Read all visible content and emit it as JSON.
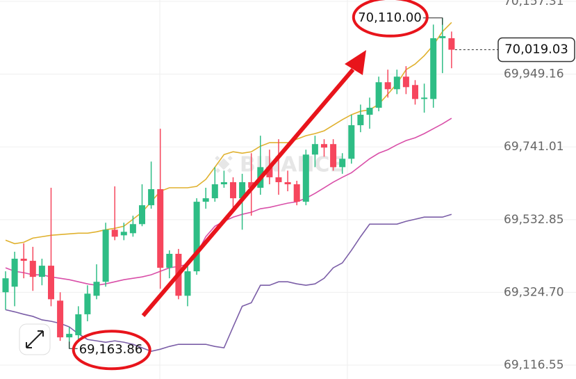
{
  "chart_data": {
    "type": "candlestick",
    "watermark": "BINANCE",
    "ylim": [
      69076.8,
      70161.3
    ],
    "yticks": [
      {
        "value": 70157.31,
        "label": "70,157.31"
      },
      {
        "value": 69949.16,
        "label": "69,949.16"
      },
      {
        "value": 69741.01,
        "label": "69,741.01"
      },
      {
        "value": 69532.85,
        "label": "69,532.85"
      },
      {
        "value": 69324.7,
        "label": "69,324.70"
      },
      {
        "value": 69116.55,
        "label": "69,116.55"
      }
    ],
    "grid": true,
    "up_color": "#2ebd85",
    "down_color": "#f6465d",
    "open": [
      69325,
      69341,
      69421,
      69415,
      69369,
      69401,
      69301,
      69196,
      69202,
      69262,
      69315,
      69355,
      69504,
      69488,
      69494,
      69520,
      69574,
      69620,
      69395,
      69435,
      69315,
      69385,
      69584,
      69594,
      69634,
      69640,
      69594,
      69640,
      69624,
      69683,
      69654,
      69640,
      69634,
      69584,
      69719,
      69749,
      69749,
      69683,
      69707,
      69803,
      69833,
      69853,
      69926,
      69906,
      69942,
      69918,
      69878,
      69878,
      70052,
      70052
    ],
    "high": [
      69385,
      69441,
      69465,
      69455,
      69421,
      69624,
      69325,
      69226,
      69285,
      69345,
      69405,
      69524,
      69628,
      69524,
      69544,
      69634,
      69699,
      69793,
      69445,
      69449,
      69415,
      69594,
      69624,
      69683,
      69673,
      69654,
      69664,
      69723,
      69773,
      69733,
      69763,
      69673,
      69644,
      69733,
      69773,
      69763,
      69763,
      69723,
      69833,
      69862,
      69882,
      69942,
      69962,
      69962,
      69972,
      69932,
      69922,
      70091,
      70110.0,
      70071
    ],
    "low": [
      69275,
      69285,
      69365,
      69329,
      69345,
      69285,
      69186,
      69163.86,
      69182,
      69242,
      69305,
      69341,
      69474,
      69474,
      69484,
      69514,
      69564,
      69335,
      69365,
      69305,
      69285,
      69375,
      69564,
      69584,
      69624,
      69564,
      69504,
      69544,
      69604,
      69634,
      69604,
      69614,
      69574,
      69574,
      69683,
      69713,
      69673,
      69664,
      69693,
      69783,
      69793,
      69843,
      69882,
      69892,
      69892,
      69862,
      69839,
      69853,
      69952,
      69966
    ],
    "close": [
      69365,
      69421,
      69415,
      69369,
      69401,
      69305,
      69196,
      69206,
      69262,
      69321,
      69355,
      69504,
      69484,
      69498,
      69520,
      69574,
      69620,
      69395,
      69435,
      69315,
      69385,
      69584,
      69594,
      69634,
      69640,
      69594,
      69640,
      69624,
      69683,
      69654,
      69640,
      69634,
      69584,
      69719,
      69749,
      69739,
      69683,
      69707,
      69803,
      69833,
      69853,
      69926,
      69906,
      69942,
      69912,
      69878,
      69882,
      70052,
      70058,
      70019.03
    ],
    "lines": [
      {
        "color": "#e0b12e",
        "values": [
          69474,
          69464,
          69468,
          69480,
          69484,
          69488,
          69490,
          69492,
          69494,
          69494,
          69498,
          69504,
          69508,
          69514,
          69534,
          69554,
          69584,
          69614,
          69624,
          69624,
          69624,
          69628,
          69648,
          69683,
          69719,
          69727,
          69723,
          69727,
          69743,
          69753,
          69753,
          69753,
          69763,
          69773,
          69779,
          69787,
          69803,
          69819,
          69833,
          69843,
          69847,
          69863,
          69892,
          69922,
          69962,
          69978,
          70002,
          70032,
          70071,
          70097
        ]
      },
      {
        "color": "#d94fa8",
        "values": [
          69395,
          69385,
          69381,
          69375,
          69375,
          69369,
          69365,
          69361,
          69355,
          69349,
          69345,
          69349,
          69355,
          69361,
          69365,
          69369,
          69375,
          69385,
          69395,
          69399,
          69405,
          69435,
          69484,
          69514,
          69528,
          69540,
          69548,
          69554,
          69564,
          69568,
          69574,
          69580,
          69584,
          69594,
          69608,
          69624,
          69640,
          69654,
          69667,
          69687,
          69707,
          69723,
          69733,
          69747,
          69759,
          69767,
          69779,
          69793,
          69807,
          69823
        ]
      },
      {
        "color": "#7b5ea7",
        "values": [
          69275,
          69269,
          69262,
          69256,
          69246,
          69242,
          69236,
          69226,
          69206,
          69190,
          69186,
          69182,
          69186,
          69182,
          69176,
          69166,
          69156,
          69162,
          69170,
          69176,
          69176,
          69176,
          69176,
          69170,
          69166,
          69226,
          69285,
          69295,
          69345,
          69345,
          69355,
          69355,
          69349,
          69345,
          69349,
          69365,
          69395,
          69409,
          69445,
          69484,
          69520,
          69520,
          69520,
          69520,
          69528,
          69534,
          69540,
          69540,
          69540,
          69548
        ]
      }
    ],
    "annotations": [
      {
        "label": "70,110.00",
        "value": 70110.0,
        "index": 48
      },
      {
        "label": "69,163.86",
        "value": 69163.86,
        "index": 7
      }
    ],
    "last_price": {
      "label": "70,019.03",
      "value": 70019.03
    }
  }
}
